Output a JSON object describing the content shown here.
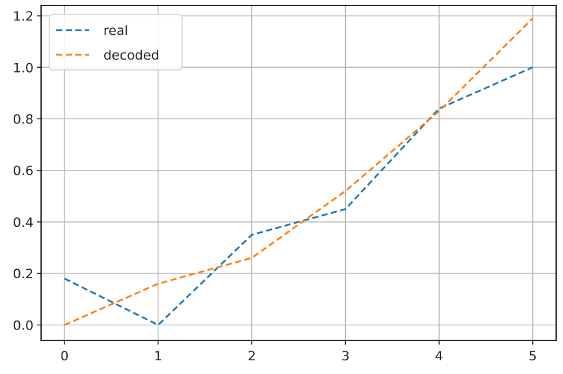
{
  "chart_data": {
    "type": "line",
    "title": "",
    "xlabel": "",
    "ylabel": "",
    "xlim": [
      -0.25,
      5.25
    ],
    "ylim": [
      -0.06,
      1.24
    ],
    "x_ticks": [
      0,
      1,
      2,
      3,
      4,
      5
    ],
    "y_ticks": [
      0.0,
      0.2,
      0.4,
      0.6,
      0.8,
      1.0,
      1.2
    ],
    "x_tick_labels": [
      "0",
      "1",
      "2",
      "3",
      "4",
      "5"
    ],
    "y_tick_labels": [
      "0.0",
      "0.2",
      "0.4",
      "0.6",
      "0.8",
      "1.0",
      "1.2"
    ],
    "grid": true,
    "legend_position": "top-left",
    "x": [
      0,
      1,
      2,
      3,
      4,
      5
    ],
    "series": [
      {
        "name": "real",
        "color": "#1f77b4",
        "dash": "dashed",
        "values": [
          0.18,
          0.0,
          0.35,
          0.45,
          0.84,
          1.0
        ]
      },
      {
        "name": "decoded",
        "color": "#ff7f0e",
        "dash": "dashed",
        "values": [
          0.0,
          0.16,
          0.26,
          0.52,
          0.83,
          1.19
        ]
      }
    ]
  }
}
